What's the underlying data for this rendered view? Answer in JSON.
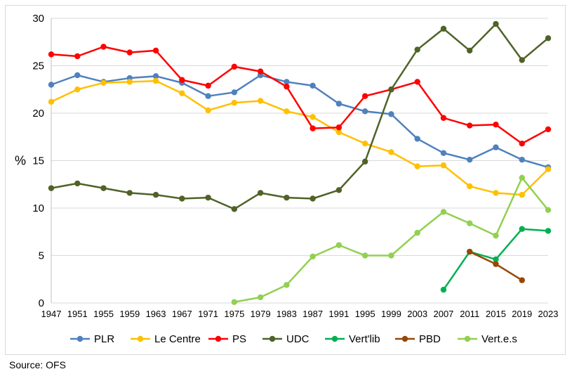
{
  "chart_data": {
    "type": "line",
    "title": "",
    "xlabel": "",
    "ylabel": "%",
    "ylim": [
      0,
      30
    ],
    "yticks": [
      0,
      5,
      10,
      15,
      20,
      25,
      30
    ],
    "grid": true,
    "legend_position": "bottom",
    "categories": [
      "1947",
      "1951",
      "1955",
      "1959",
      "1963",
      "1967",
      "1971",
      "1975",
      "1979",
      "1983",
      "1987",
      "1991",
      "1995",
      "1999",
      "2003",
      "2007",
      "2011",
      "2015",
      "2019",
      "2023"
    ],
    "series": [
      {
        "name": "PLR",
        "color": "#4f81bd",
        "values": [
          23.0,
          24.0,
          23.3,
          23.7,
          23.9,
          23.2,
          21.8,
          22.2,
          24.0,
          23.3,
          22.9,
          21.0,
          20.2,
          19.9,
          17.3,
          15.8,
          15.1,
          16.4,
          15.1,
          14.3
        ]
      },
      {
        "name": "Le Centre",
        "color": "#ffc000",
        "values": [
          21.2,
          22.5,
          23.2,
          23.3,
          23.4,
          22.1,
          20.3,
          21.1,
          21.3,
          20.2,
          19.6,
          18.0,
          16.8,
          15.9,
          14.4,
          14.5,
          12.3,
          11.6,
          11.4,
          14.1
        ]
      },
      {
        "name": "PS",
        "color": "#ff0000",
        "values": [
          26.2,
          26.0,
          27.0,
          26.4,
          26.6,
          23.5,
          22.9,
          24.9,
          24.4,
          22.8,
          18.4,
          18.5,
          21.8,
          22.5,
          23.3,
          19.5,
          18.7,
          18.8,
          16.8,
          18.3
        ]
      },
      {
        "name": "UDC",
        "color": "#4f6228",
        "values": [
          12.1,
          12.6,
          12.1,
          11.6,
          11.4,
          11.0,
          11.1,
          9.9,
          11.6,
          11.1,
          11.0,
          11.9,
          14.9,
          22.5,
          26.7,
          28.9,
          26.6,
          29.4,
          25.6,
          27.9
        ]
      },
      {
        "name": "Vert'lib",
        "color": "#00b050",
        "values": [
          null,
          null,
          null,
          null,
          null,
          null,
          null,
          null,
          null,
          null,
          null,
          null,
          null,
          null,
          null,
          1.4,
          5.4,
          4.6,
          7.8,
          7.6
        ]
      },
      {
        "name": "PBD",
        "color": "#974706",
        "values": [
          null,
          null,
          null,
          null,
          null,
          null,
          null,
          null,
          null,
          null,
          null,
          null,
          null,
          null,
          null,
          null,
          5.4,
          4.1,
          2.4,
          null
        ]
      },
      {
        "name": "Vert.e.s",
        "color": "#92d050",
        "values": [
          null,
          null,
          null,
          null,
          null,
          null,
          null,
          0.1,
          0.6,
          1.9,
          4.9,
          6.1,
          5.0,
          5.0,
          7.4,
          9.6,
          8.4,
          7.1,
          13.2,
          9.8
        ]
      }
    ],
    "source": "Source: OFS"
  },
  "colors": {
    "grid": "#d9d9d9",
    "axis": "#bfbfbf"
  }
}
